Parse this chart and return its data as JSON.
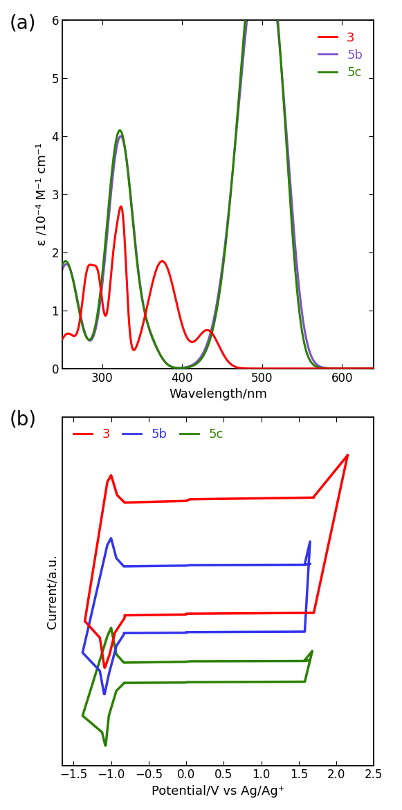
{
  "panel_a": {
    "xlabel": "Wavelength/nm",
    "ylabel": "ε /10⁻⁴ M⁻¹ cm⁻¹",
    "xlim": [
      250,
      640
    ],
    "ylim": [
      0,
      6
    ],
    "xticks": [
      300,
      400,
      500,
      600
    ],
    "yticks": [
      0,
      1,
      2,
      3,
      4,
      5,
      6
    ],
    "colors": {
      "3": "#ff0000",
      "5b": "#7b52c8",
      "5c": "#2a8000"
    }
  },
  "panel_b": {
    "xlabel": "Potential/V vs Ag/Ag⁺",
    "ylabel": "Current/a.u.",
    "xticks": [
      -1.5,
      -1.0,
      -0.5,
      0.0,
      0.5,
      1.0,
      1.5,
      2.0,
      2.5
    ],
    "colors": {
      "3": "#ff0000",
      "5b": "#3333ee",
      "5c": "#2a8000"
    }
  },
  "fig_bg": "#ffffff"
}
